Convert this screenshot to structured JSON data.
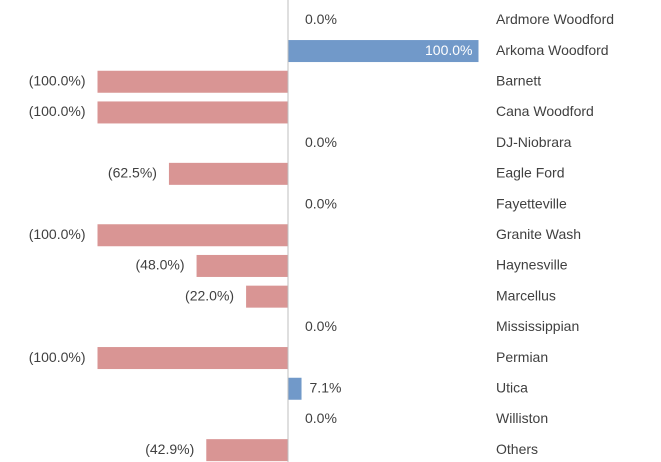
{
  "chart_data": {
    "type": "bar",
    "orientation": "horizontal",
    "categories": [
      "Ardmore Woodford",
      "Arkoma Woodford",
      "Barnett",
      "Cana Woodford",
      "DJ-Niobrara",
      "Eagle Ford",
      "Fayetteville",
      "Granite Wash",
      "Haynesville",
      "Marcellus",
      "Mississippian",
      "Permian",
      "Utica",
      "Williston",
      "Others"
    ],
    "values": [
      0,
      100,
      -100,
      -100,
      0,
      -62.5,
      0,
      -100,
      -48,
      -22,
      0,
      -100,
      7.1,
      0,
      -42.9
    ],
    "value_labels": [
      "0.0%",
      "100.0%",
      "(100.0%)",
      "(100.0%)",
      "0.0%",
      "(62.5%)",
      "0.0%",
      "(100.0%)",
      "(48.0%)",
      "(22.0%)",
      "0.0%",
      "(100.0%)",
      "7.1%",
      "0.0%",
      "(42.9%)"
    ],
    "positive_color": "#7199c9",
    "negative_color": "#d99594"
  }
}
